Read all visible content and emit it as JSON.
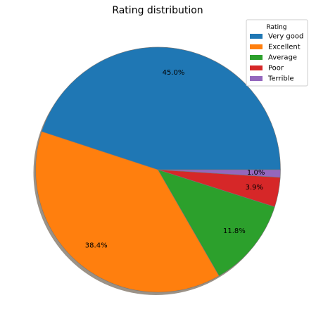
{
  "chart_data": {
    "type": "pie",
    "title": "Rating distribution",
    "slices": [
      {
        "label": "Very good",
        "value": 45.0,
        "pct_label": "45.0%",
        "color": "#1f77b4"
      },
      {
        "label": "Excellent",
        "value": 38.4,
        "pct_label": "38.4%",
        "color": "#ff7f0e"
      },
      {
        "label": "Average",
        "value": 11.8,
        "pct_label": "11.8%",
        "color": "#2ca02c"
      },
      {
        "label": "Poor",
        "value": 3.9,
        "pct_label": "3.9%",
        "color": "#d62728"
      },
      {
        "label": "Terrible",
        "value": 1.0,
        "pct_label": "1.0%",
        "color": "#9467bd"
      }
    ],
    "start_angle_deg": 0,
    "direction": "counterclockwise",
    "shadow": true,
    "legend": {
      "title": "Rating",
      "placement": "top-right"
    }
  }
}
